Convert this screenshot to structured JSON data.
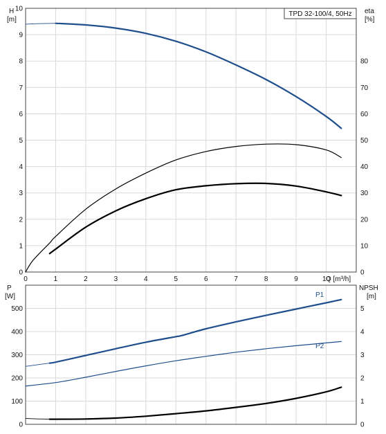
{
  "chart_data": [
    {
      "type": "line",
      "legend_box": "TPD 32-100/4, 50Hz",
      "left_axis": {
        "symbol": "H",
        "unit": "[m]",
        "ylim": [
          0,
          10
        ],
        "ticks": [
          "0",
          "1",
          "2",
          "3",
          "4",
          "5",
          "6",
          "7",
          "8",
          "9",
          "10"
        ]
      },
      "right_axis": {
        "symbol": "eta",
        "unit": "[%]",
        "ylim": [
          0,
          100
        ],
        "ticks": [
          "0",
          "10",
          "20",
          "30",
          "40",
          "50",
          "60",
          "70",
          "80"
        ]
      },
      "x_axis": {
        "label": "Q [m³/h]",
        "xlim": [
          0,
          11
        ],
        "ticks": [
          "0",
          "1",
          "2",
          "3",
          "4",
          "5",
          "6",
          "7",
          "8",
          "9",
          "10"
        ]
      },
      "grid": true,
      "series": [
        {
          "axis": "left",
          "color": "#1f4e8c",
          "stroke": 2.2,
          "x": [
            0,
            0.5,
            1.0,
            2.0,
            3.0,
            4.0,
            5.0,
            6.0,
            7.0,
            8.0,
            9.0,
            10.0,
            10.5
          ],
          "y": [
            9.4,
            9.42,
            9.43,
            9.37,
            9.25,
            9.05,
            8.75,
            8.35,
            7.85,
            7.3,
            6.65,
            5.9,
            5.45
          ],
          "thin_start_x": 0.8
        },
        {
          "axis": "right",
          "color": "#000000",
          "stroke": 1.2,
          "x": [
            0,
            0.25,
            0.8,
            1.0,
            2.0,
            3.0,
            4.0,
            5.0,
            6.0,
            7.0,
            8.0,
            9.0,
            10.0,
            10.5
          ],
          "y": [
            0,
            4.5,
            11.0,
            13.5,
            23.8,
            31.5,
            37.5,
            42.5,
            45.7,
            47.6,
            48.5,
            48.3,
            46.3,
            43.4
          ]
        },
        {
          "axis": "right",
          "color": "#000000",
          "stroke": 2.2,
          "x": [
            0.8,
            1.0,
            2.0,
            3.0,
            4.0,
            5.0,
            6.0,
            7.0,
            8.0,
            9.0,
            10.0,
            10.5
          ],
          "y": [
            7.0,
            8.7,
            17.0,
            23.2,
            27.8,
            31.2,
            32.7,
            33.5,
            33.6,
            32.6,
            30.4,
            29.0
          ]
        }
      ]
    },
    {
      "type": "line",
      "left_axis": {
        "symbol": "P",
        "unit": "[W]",
        "ylim": [
          0,
          600
        ],
        "ticks": [
          "0",
          "100",
          "200",
          "300",
          "400",
          "500"
        ]
      },
      "right_axis": {
        "symbol": "NPSH",
        "unit": "[m]",
        "ylim": [
          0,
          6
        ],
        "ticks": [
          "0",
          "1",
          "2",
          "3",
          "4",
          "5"
        ]
      },
      "xlim": [
        0,
        11
      ],
      "grid": true,
      "series": [
        {
          "name": "P1",
          "axis": "left",
          "color": "#1f4e8c",
          "stroke": 2.2,
          "x": [
            0,
            0.8,
            1.0,
            2.0,
            3.0,
            4.0,
            5.0,
            5.2,
            6.0,
            7.0,
            8.0,
            9.0,
            10.0,
            10.5
          ],
          "y": [
            250,
            264,
            268,
            297,
            326,
            354,
            378,
            383,
            412,
            442,
            470,
            497,
            524,
            538
          ],
          "thin_end_x": 0.8
        },
        {
          "name": "P2",
          "axis": "left",
          "color": "#1f4e8c",
          "stroke": 1.2,
          "x": [
            0,
            1.0,
            2.0,
            3.0,
            4.0,
            5.0,
            6.0,
            7.0,
            8.0,
            9.0,
            10.0,
            10.5
          ],
          "y": [
            165,
            180,
            203,
            228,
            252,
            274,
            293,
            311,
            326,
            339,
            351,
            357
          ]
        },
        {
          "axis": "right",
          "color": "#000000",
          "stroke": 2.2,
          "x": [
            0,
            0.8,
            1.0,
            2.0,
            3.0,
            4.0,
            5.0,
            6.0,
            7.0,
            8.0,
            9.0,
            10.0,
            10.5
          ],
          "y": [
            0.25,
            0.22,
            0.22,
            0.23,
            0.27,
            0.35,
            0.46,
            0.58,
            0.73,
            0.9,
            1.12,
            1.4,
            1.6
          ],
          "thin_end_x": 0.8
        }
      ]
    }
  ]
}
